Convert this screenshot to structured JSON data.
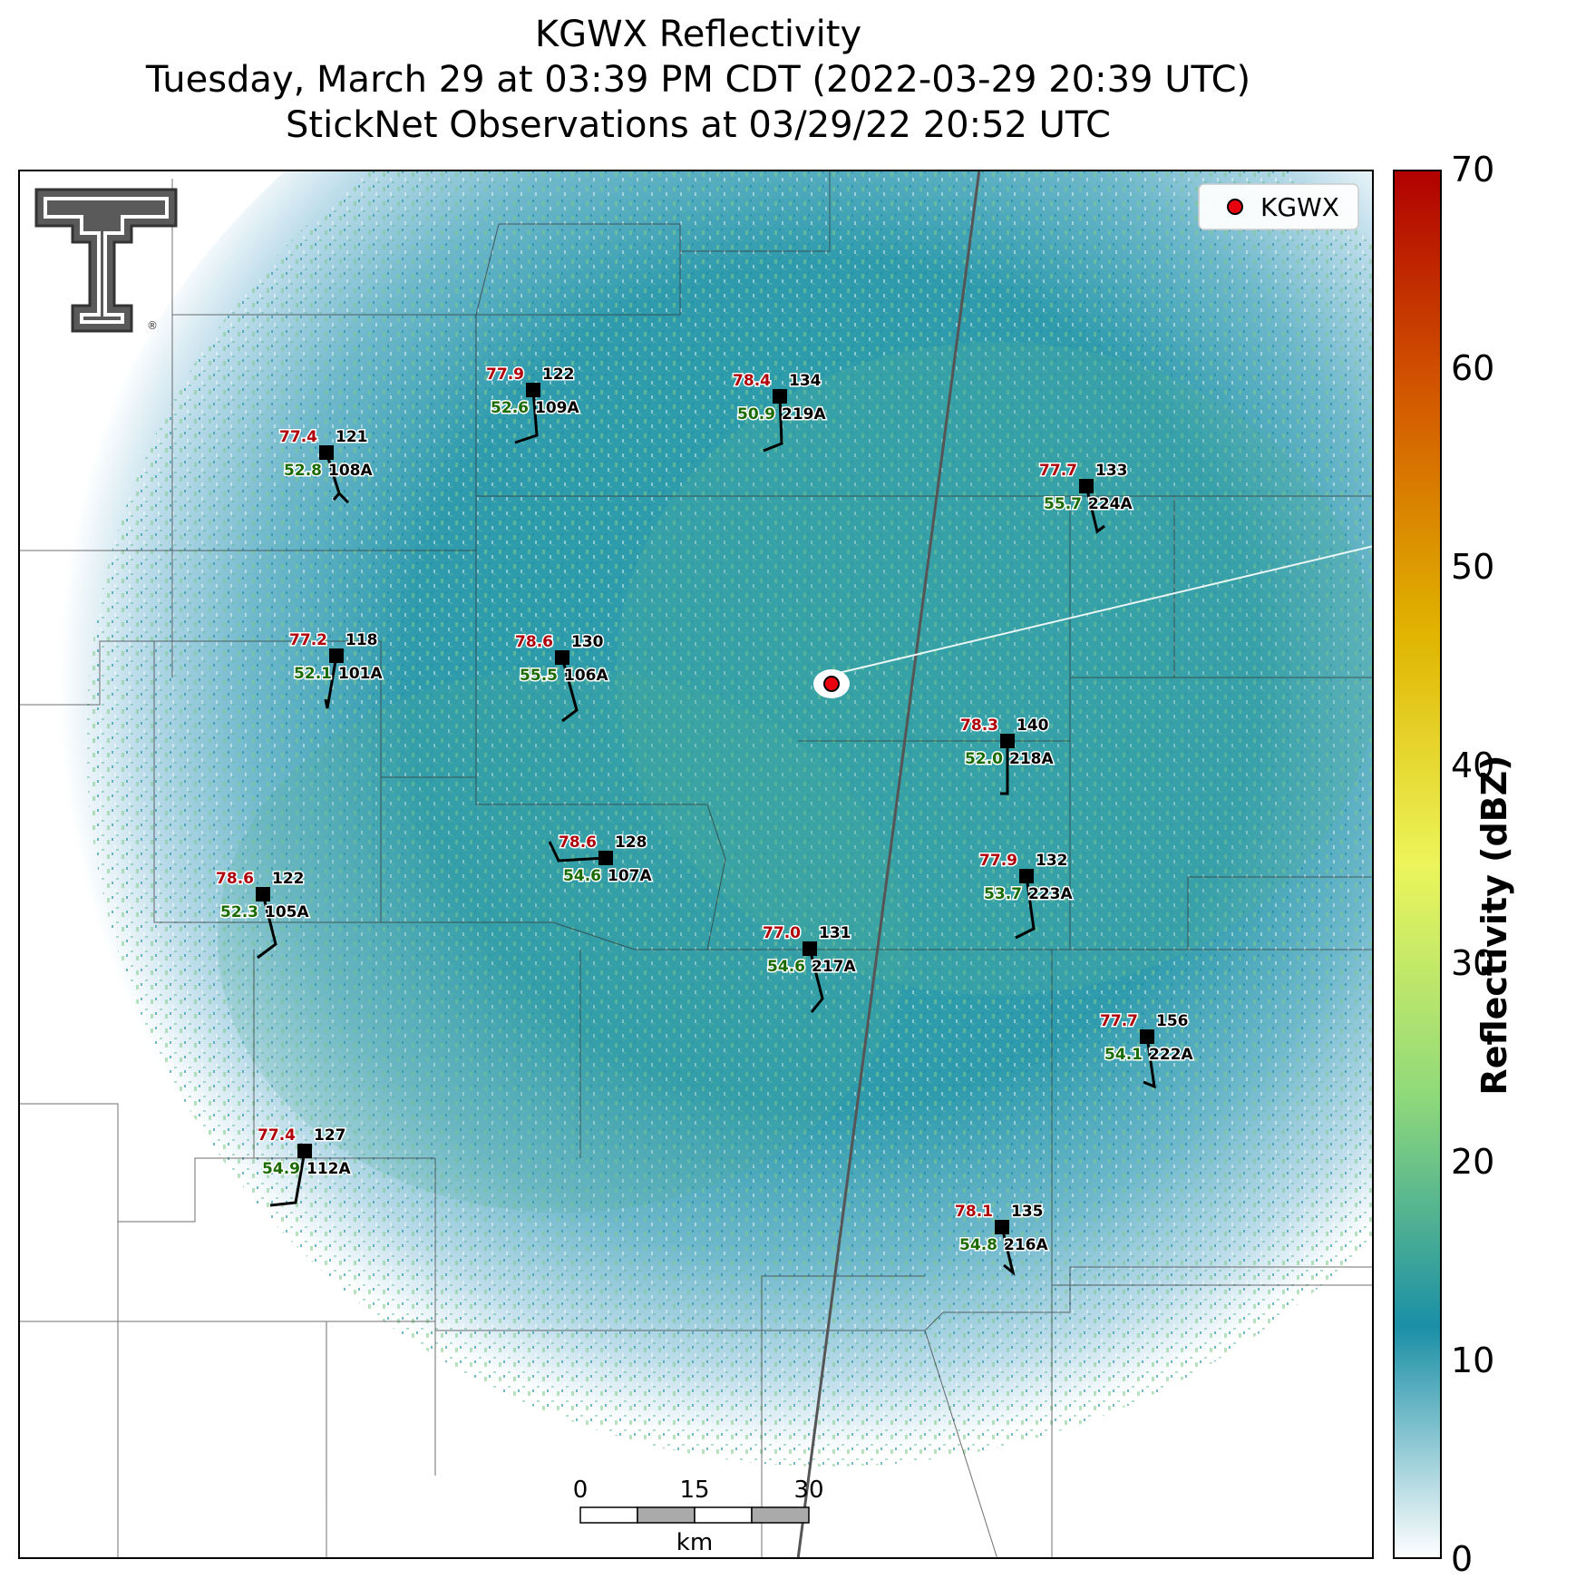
{
  "title": {
    "line1": "KGWX Reflectivity",
    "line2": "Tuesday, March 29 at 03:39 PM CDT (2022-03-29 20:39 UTC)",
    "line3": "StickNet Observations at 03/29/22 20:52 UTC"
  },
  "legend": {
    "label": "KGWX",
    "marker_color": "#e8000f"
  },
  "colorbar": {
    "label": "Reflectivity (dBZ)",
    "ticks": [
      "0",
      "10",
      "20",
      "30",
      "40",
      "50",
      "60",
      "70"
    ],
    "range": [
      0,
      70
    ],
    "colors": [
      "#ffffff",
      "#1a8fa6",
      "#8fd97b",
      "#ecf55a",
      "#e0b400",
      "#d45b00",
      "#b00000"
    ]
  },
  "scale_bar": {
    "ticks": [
      "0",
      "15",
      "30"
    ],
    "unit": "km"
  },
  "logo": {
    "name": "Texas Tech Double T",
    "mark": "®"
  },
  "stations": [
    {
      "id": "109A",
      "temp": "77.9",
      "dew": "52.6",
      "dir": "122"
    },
    {
      "id": "219A",
      "temp": "78.4",
      "dew": "50.9",
      "dir": "134"
    },
    {
      "id": "108A",
      "temp": "77.4",
      "dew": "52.8",
      "dir": "121"
    },
    {
      "id": "224A",
      "temp": "77.7",
      "dew": "55.7",
      "dir": "133"
    },
    {
      "id": "101A",
      "temp": "77.2",
      "dew": "52.1",
      "dir": "118"
    },
    {
      "id": "106A",
      "temp": "78.6",
      "dew": "55.5",
      "dir": "130"
    },
    {
      "id": "218A",
      "temp": "78.3",
      "dew": "52.0",
      "dir": "140"
    },
    {
      "id": "107A",
      "temp": "78.6",
      "dew": "54.6",
      "dir": "128"
    },
    {
      "id": "223A",
      "temp": "77.9",
      "dew": "53.7",
      "dir": "132"
    },
    {
      "id": "105A",
      "temp": "78.6",
      "dew": "52.3",
      "dir": "122"
    },
    {
      "id": "217A",
      "temp": "77.0",
      "dew": "54.6",
      "dir": "131"
    },
    {
      "id": "222A",
      "temp": "77.7",
      "dew": "54.1",
      "dir": "156"
    },
    {
      "id": "112A",
      "temp": "77.4",
      "dew": "54.9",
      "dir": "127"
    },
    {
      "id": "216A",
      "temp": "78.1",
      "dew": "54.8",
      "dir": "135"
    }
  ]
}
